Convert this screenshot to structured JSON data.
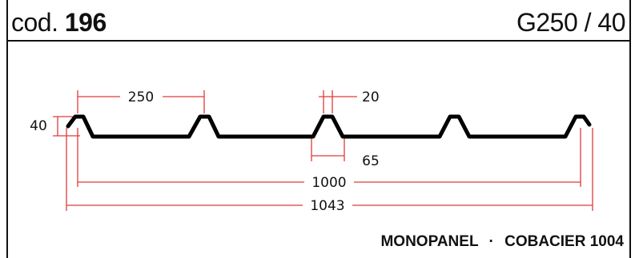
{
  "header": {
    "code_prefix": "cod.",
    "code_number": "196",
    "model": "G250 / 40"
  },
  "footer": {
    "brand_left": "MONOPANEL",
    "separator": "·",
    "brand_right": "COBACIER 1004"
  },
  "dimensions": {
    "pitch": "250",
    "crest_width": "20",
    "base_width": "65",
    "height": "40",
    "cover_width": "1000",
    "total_width": "1043"
  },
  "colors": {
    "dimension_lines": "#e03a3a",
    "profile": "#000000"
  }
}
